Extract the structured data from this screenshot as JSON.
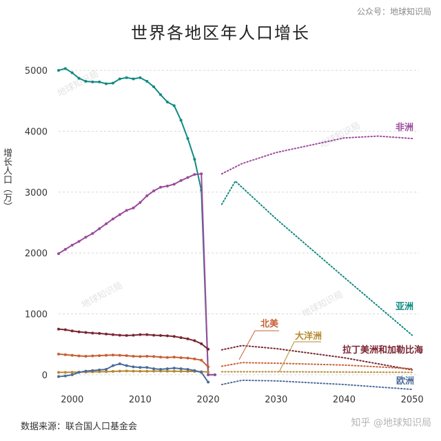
{
  "header": {
    "credit": "公众号：地球知识局",
    "title": "世界各地区年人口增长"
  },
  "footer": {
    "source": "数据来源：联合国人口基金会",
    "credit": "知乎 @地球知识局"
  },
  "watermark": "地球知识局",
  "chart_data": {
    "type": "line",
    "title": "世界各地区年人口增长",
    "ylabel": "增长人口（万）",
    "xlabel": "",
    "xlim": [
      1998,
      2051
    ],
    "ylim": [
      -250,
      5250
    ],
    "xticks": [
      2000,
      2010,
      2020,
      2030,
      2040,
      2050
    ],
    "yticks": [
      0,
      1000,
      2000,
      3000,
      4000,
      5000
    ],
    "grid": "horizontal dotted",
    "note": "Solid lines with markers = historical (1998–2021); dotted lines = projection (2022–2050)",
    "series": [
      {
        "name": "亚洲",
        "color": "#0f8a80",
        "historical": {
          "x": [
            1998,
            1999,
            2000,
            2001,
            2002,
            2003,
            2004,
            2005,
            2006,
            2007,
            2008,
            2009,
            2010,
            2011,
            2012,
            2013,
            2014,
            2015,
            2016,
            2017,
            2018,
            2019,
            2020,
            2021
          ],
          "y": [
            5000,
            5030,
            4960,
            4870,
            4820,
            4810,
            4810,
            4780,
            4790,
            4860,
            4880,
            4860,
            4880,
            4820,
            4730,
            4600,
            4480,
            4420,
            4180,
            3880,
            3540,
            3030,
            0,
            0
          ]
        },
        "projection": {
          "x": [
            2022,
            2024,
            2030,
            2040,
            2050
          ],
          "y": [
            2800,
            3180,
            2560,
            1600,
            650
          ]
        }
      },
      {
        "name": "非洲",
        "color": "#9b4a9c",
        "historical": {
          "x": [
            1998,
            1999,
            2000,
            2001,
            2002,
            2003,
            2004,
            2005,
            2006,
            2007,
            2008,
            2009,
            2010,
            2011,
            2012,
            2013,
            2014,
            2015,
            2016,
            2017,
            2018,
            2019,
            2020,
            2021
          ],
          "y": [
            1990,
            2060,
            2130,
            2190,
            2260,
            2320,
            2400,
            2480,
            2560,
            2630,
            2700,
            2740,
            2830,
            2940,
            3020,
            3080,
            3100,
            3130,
            3190,
            3240,
            3290,
            3300,
            0,
            0
          ]
        },
        "projection": {
          "x": [
            2022,
            2025,
            2030,
            2040,
            2045,
            2050
          ],
          "y": [
            3300,
            3470,
            3650,
            3890,
            3920,
            3880
          ]
        }
      },
      {
        "name": "拉丁美洲和加勒比海",
        "color": "#7a2431",
        "historical": {
          "x": [
            1998,
            1999,
            2000,
            2001,
            2002,
            2003,
            2004,
            2005,
            2006,
            2007,
            2008,
            2009,
            2010,
            2011,
            2012,
            2013,
            2014,
            2015,
            2016,
            2017,
            2018,
            2019,
            2020,
            2021
          ],
          "y": [
            750,
            740,
            720,
            705,
            695,
            685,
            680,
            670,
            660,
            650,
            645,
            650,
            660,
            660,
            650,
            645,
            640,
            630,
            610,
            590,
            560,
            510,
            420,
            0
          ]
        },
        "projection": {
          "x": [
            2022,
            2025,
            2030,
            2040,
            2050
          ],
          "y": [
            410,
            480,
            430,
            280,
            80
          ]
        }
      },
      {
        "name": "北美",
        "color": "#c75f33",
        "historical": {
          "x": [
            1998,
            1999,
            2000,
            2001,
            2002,
            2003,
            2004,
            2005,
            2006,
            2007,
            2008,
            2009,
            2010,
            2011,
            2012,
            2013,
            2014,
            2015,
            2016,
            2017,
            2018,
            2019,
            2020,
            2021
          ],
          "y": [
            340,
            330,
            320,
            310,
            305,
            310,
            315,
            320,
            325,
            320,
            315,
            305,
            300,
            305,
            300,
            290,
            285,
            290,
            280,
            275,
            260,
            240,
            130,
            0
          ]
        },
        "projection": {
          "x": [
            2022,
            2025,
            2030,
            2040,
            2050
          ],
          "y": [
            140,
            200,
            190,
            160,
            100
          ]
        }
      },
      {
        "name": "大洋洲",
        "color": "#b6892f",
        "historical": {
          "x": [
            1998,
            1999,
            2000,
            2001,
            2002,
            2003,
            2004,
            2005,
            2006,
            2007,
            2008,
            2009,
            2010,
            2011,
            2012,
            2013,
            2014,
            2015,
            2016,
            2017,
            2018,
            2019,
            2020,
            2021
          ],
          "y": [
            40,
            40,
            42,
            44,
            46,
            48,
            50,
            52,
            55,
            60,
            62,
            60,
            58,
            58,
            60,
            60,
            58,
            58,
            57,
            56,
            55,
            52,
            45,
            0
          ]
        },
        "projection": {
          "x": [
            2022,
            2030,
            2040,
            2050
          ],
          "y": [
            50,
            50,
            45,
            40
          ]
        }
      },
      {
        "name": "欧洲",
        "color": "#4a6b9a",
        "historical": {
          "x": [
            1998,
            1999,
            2000,
            2001,
            2002,
            2003,
            2004,
            2005,
            2006,
            2007,
            2008,
            2009,
            2010,
            2011,
            2012,
            2013,
            2014,
            2015,
            2016,
            2017,
            2018,
            2019,
            2020,
            2021
          ],
          "y": [
            -30,
            -20,
            0,
            40,
            60,
            70,
            80,
            90,
            150,
            180,
            150,
            130,
            120,
            120,
            100,
            90,
            100,
            110,
            100,
            90,
            70,
            40,
            -120,
            0
          ]
        },
        "projection": {
          "x": [
            2022,
            2025,
            2030,
            2040,
            2050
          ],
          "y": [
            -160,
            -90,
            -100,
            -160,
            -240
          ]
        }
      }
    ],
    "labels": {
      "africa": "非洲",
      "asia": "亚洲",
      "north_america": "北美",
      "oceania": "大洋洲",
      "latin_america": "拉丁美洲和加勒比海",
      "europe": "欧洲"
    }
  }
}
